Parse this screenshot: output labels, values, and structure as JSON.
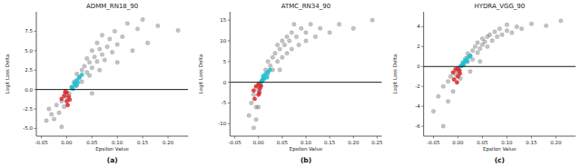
{
  "chart_data": [
    {
      "type": "scatter",
      "title": "ADMM_RN18_90",
      "x_label": "Epsilon Value",
      "y_label": "Logit Loss Delta",
      "caption": "(a)",
      "xlim": [
        -0.06,
        0.24
      ],
      "ylim": [
        -6,
        10
      ],
      "xticks": [
        -0.05,
        {
          "value": 0,
          "label": "0.00"
        },
        0.05,
        {
          "value": 0.1,
          "label": "0.10"
        },
        0.15,
        {
          "value": 0.2,
          "label": "0.20"
        }
      ],
      "yticks": [
        {
          "value": -5,
          "label": "-5.0"
        },
        -2.5,
        {
          "value": 0,
          "label": "0.0"
        },
        2.5,
        {
          "value": 5,
          "label": "5.0"
        },
        7.5
      ],
      "reference_line": 0,
      "marker": "circle",
      "grid": false,
      "series": [
        {
          "color": "#555555",
          "x": [
            -0.04,
            -0.03,
            -0.035,
            -0.025,
            -0.02,
            -0.015,
            -0.01,
            -0.005,
            0.0,
            0.005,
            0.01,
            0.015,
            0.02,
            0.02,
            0.025,
            0.03,
            0.03,
            0.035,
            0.04,
            0.04,
            0.045,
            0.05,
            0.05,
            0.055,
            0.06,
            0.06,
            0.065,
            0.07,
            0.07,
            0.075,
            0.08,
            0.085,
            0.09,
            0.095,
            0.1,
            0.1,
            0.11,
            0.12,
            0.13,
            0.14,
            0.15,
            0.16,
            0.18,
            0.22,
            0.05,
            -0.01,
            0.045,
            0.065
          ],
          "values": [
            -4.0,
            -3.2,
            -2.5,
            -3.8,
            -2.0,
            -3.0,
            -1.5,
            -2.2,
            -1.0,
            -0.5,
            0.3,
            1.0,
            0.5,
            2.0,
            1.5,
            2.5,
            1.0,
            3.0,
            2.2,
            4.0,
            3.5,
            2.8,
            5.0,
            4.2,
            3.6,
            6.0,
            5.2,
            4.5,
            7.0,
            3.8,
            5.5,
            6.5,
            4.8,
            7.5,
            5.8,
            3.5,
            6.8,
            8.5,
            5.0,
            7.8,
            9.0,
            6.0,
            8.2,
            7.6,
            -0.5,
            -4.8,
            1.8,
            2.5
          ]
        },
        {
          "color": "#d62728",
          "x": [
            -0.01,
            -0.005,
            0.0,
            0.0,
            0.002,
            0.004,
            -0.003,
            0.006
          ],
          "values": [
            -1.2,
            -0.8,
            -1.5,
            -0.4,
            -2.0,
            -0.9,
            -0.3,
            -1.3
          ]
        },
        {
          "color": "#17becf",
          "x": [
            0.01,
            0.015,
            0.02,
            0.012,
            0.025,
            0.018,
            0.022,
            0.03
          ],
          "values": [
            0.3,
            0.8,
            1.2,
            0.1,
            1.6,
            0.5,
            0.9,
            1.9
          ]
        }
      ]
    },
    {
      "type": "scatter",
      "title": "ATMC_RN34_90",
      "x_label": "Epsilon Value",
      "y_label": "Logit Loss Delta",
      "caption": "(b)",
      "xlim": [
        -0.06,
        0.26
      ],
      "ylim": [
        -13,
        17
      ],
      "xticks": [
        -0.05,
        {
          "value": 0,
          "label": "0.00"
        },
        0.05,
        {
          "value": 0.1,
          "label": "0.10"
        },
        0.15,
        {
          "value": 0.2,
          "label": "0.20"
        },
        0.25
      ],
      "yticks": [
        -10,
        -5,
        0,
        5,
        10,
        15
      ],
      "reference_line": 0,
      "marker": "circle",
      "grid": false,
      "series": [
        {
          "color": "#555555",
          "x": [
            -0.02,
            -0.015,
            -0.01,
            -0.01,
            -0.005,
            0.0,
            0.005,
            0.01,
            0.015,
            0.02,
            0.02,
            0.025,
            0.03,
            0.03,
            0.035,
            0.04,
            0.04,
            0.045,
            0.05,
            0.05,
            0.055,
            0.06,
            0.06,
            0.065,
            0.07,
            0.07,
            0.08,
            0.085,
            0.09,
            0.1,
            0.1,
            0.11,
            0.12,
            0.13,
            0.15,
            0.17,
            0.2,
            0.24,
            0.045,
            0.075,
            0.0,
            -0.005
          ],
          "values": [
            -8,
            -5,
            -11,
            -3,
            -6,
            -2,
            -1,
            1,
            3,
            2,
            5,
            4,
            6,
            3,
            7,
            5,
            9,
            8,
            6,
            10,
            9,
            7,
            11,
            10,
            8,
            12,
            11,
            9,
            13,
            10,
            12,
            14,
            11,
            13,
            12,
            14,
            13,
            15,
            3,
            14,
            -6,
            -9
          ]
        },
        {
          "color": "#d62728",
          "x": [
            -0.01,
            -0.005,
            0.0,
            0.0,
            0.003,
            -0.008,
            0.005,
            0.002
          ],
          "values": [
            -2,
            -1,
            -3,
            -0.5,
            -1.5,
            -4,
            -0.8,
            -2.5
          ]
        },
        {
          "color": "#17becf",
          "x": [
            0.008,
            0.01,
            0.015,
            0.012,
            0.02,
            0.018,
            0.024,
            0.006
          ],
          "values": [
            0.5,
            1.5,
            2,
            0.8,
            2.5,
            1.2,
            3,
            0.2
          ]
        }
      ]
    },
    {
      "type": "scatter",
      "title": "HYDRA_VGG_90",
      "x_label": "Epsilon Value",
      "y_label": "Logit Loss Delta",
      "caption": "(c)",
      "xlim": [
        -0.07,
        0.24
      ],
      "ylim": [
        -7,
        5.5
      ],
      "xticks": [
        -0.05,
        {
          "value": 0,
          "label": "0.00"
        },
        0.05,
        {
          "value": 0.1,
          "label": "0.10"
        },
        0.15,
        {
          "value": 0.2,
          "label": "0.20"
        }
      ],
      "yticks": [
        -6,
        -4,
        -2,
        0,
        2,
        4
      ],
      "reference_line": 0,
      "marker": "circle",
      "grid": false,
      "series": [
        {
          "color": "#555555",
          "x": [
            -0.04,
            -0.03,
            -0.03,
            -0.02,
            -0.02,
            -0.015,
            -0.01,
            -0.005,
            0.0,
            0.005,
            0.01,
            0.015,
            0.02,
            0.02,
            0.025,
            0.03,
            0.03,
            0.035,
            0.04,
            0.04,
            0.045,
            0.05,
            0.05,
            0.055,
            0.06,
            0.06,
            0.065,
            0.07,
            0.075,
            0.08,
            0.085,
            0.09,
            0.1,
            0.1,
            0.11,
            0.12,
            0.13,
            0.15,
            0.18,
            0.21,
            0.045,
            0.025,
            -0.05
          ],
          "values": [
            -3,
            -2,
            -6,
            -1.5,
            -3.5,
            -1,
            -2.5,
            -0.8,
            -0.5,
            -1.2,
            0.2,
            0.8,
            0.5,
            1.3,
            1,
            1.6,
            0.7,
            2,
            1.4,
            2.4,
            1.8,
            2.2,
            2.8,
            2.5,
            3,
            2,
            3.2,
            2.6,
            3.5,
            3,
            3.8,
            3.2,
            3.6,
            4.2,
            3.4,
            4,
            3.8,
            4.3,
            4.1,
            4.6,
            0.5,
            -0.5,
            -4.5
          ]
        },
        {
          "color": "#d62728",
          "x": [
            -0.01,
            -0.005,
            0.0,
            0.0,
            0.004,
            -0.008,
            0.003,
            -0.002
          ],
          "values": [
            -0.6,
            -0.3,
            -1.0,
            -0.2,
            -0.7,
            -1.3,
            -0.4,
            -1.6
          ]
        },
        {
          "color": "#17becf",
          "x": [
            0.008,
            0.01,
            0.015,
            0.012,
            0.02,
            0.018,
            0.025,
            0.006
          ],
          "values": [
            0.1,
            0.4,
            0.6,
            0.2,
            0.9,
            0.5,
            1.1,
            0.05
          ]
        }
      ]
    }
  ]
}
